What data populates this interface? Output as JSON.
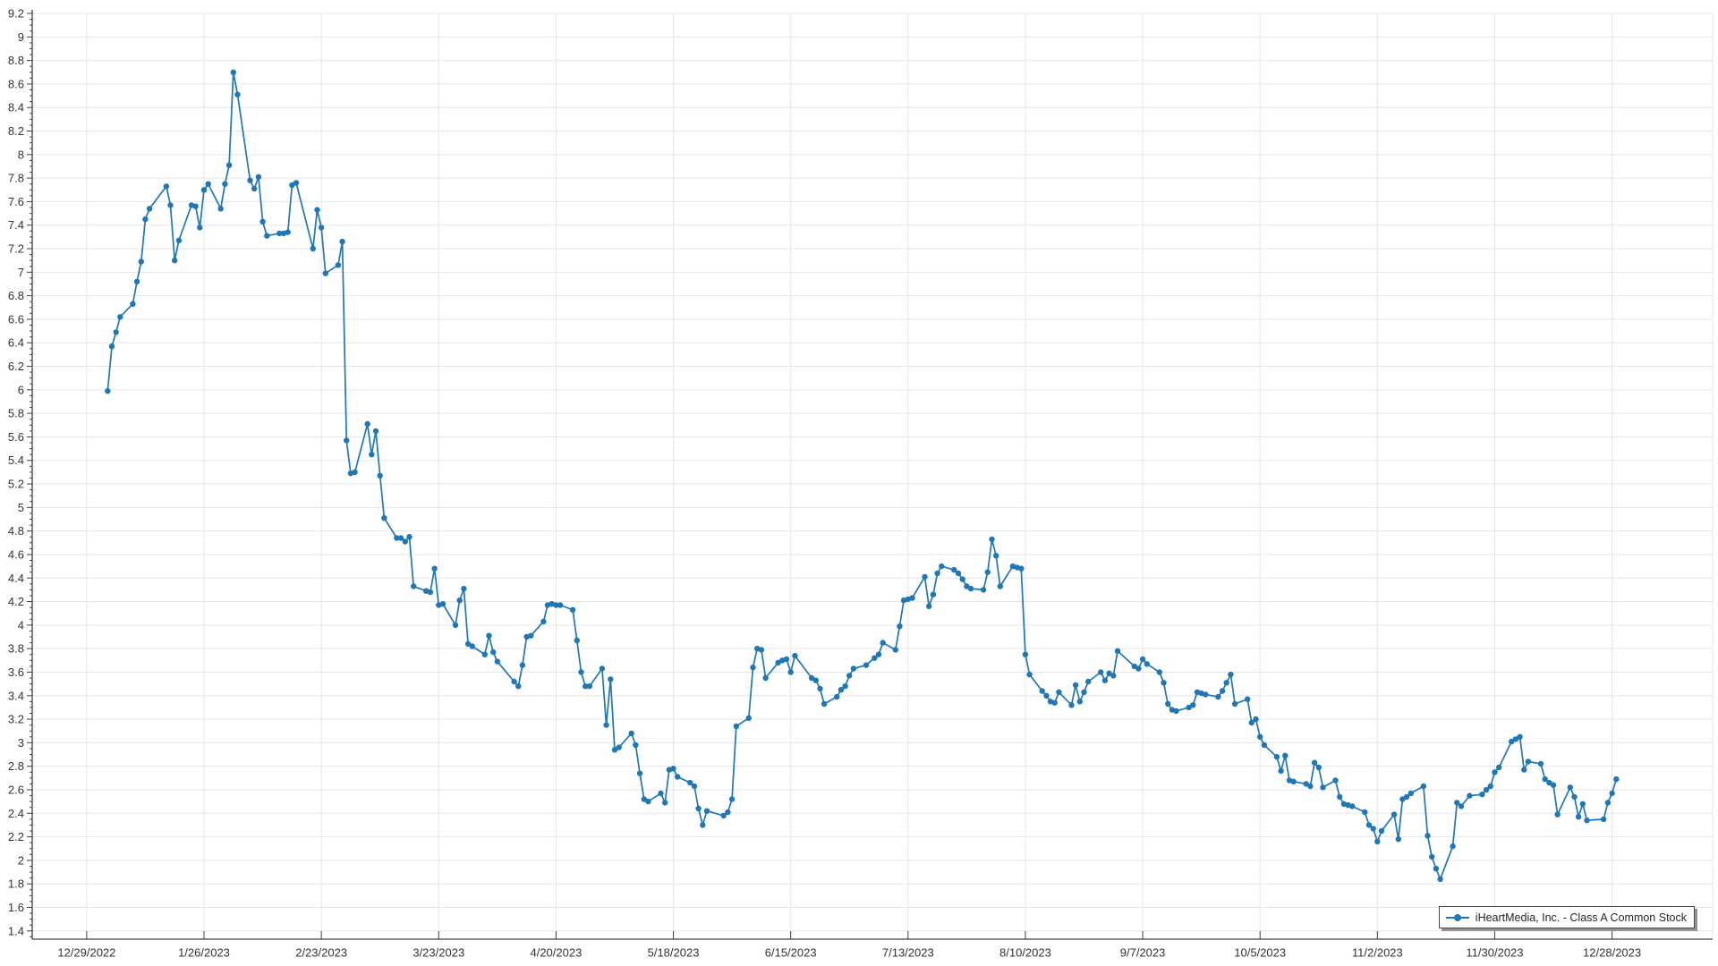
{
  "page": {
    "background": "#ffffff"
  },
  "chart_data": {
    "type": "line",
    "title": "",
    "legend": "iHeartMedia, Inc. - Class A Common Stock",
    "legend_position": "bottom-right",
    "series_color": "#1f77b4",
    "marker": "circle",
    "grid": true,
    "x_axis": {
      "tick_labels": [
        "12/29/2022",
        "1/26/2023",
        "2/23/2023",
        "3/23/2023",
        "4/20/2023",
        "5/18/2023",
        "6/15/2023",
        "7/13/2023",
        "8/10/2023",
        "9/7/2023",
        "10/5/2023",
        "11/2/2023",
        "11/30/2023",
        "12/28/2023"
      ]
    },
    "y_axis": {
      "tick_labels": [
        "1.4",
        "1.6",
        "1.8",
        "2",
        "2.2",
        "2.4",
        "2.6",
        "2.8",
        "3",
        "3.2",
        "3.4",
        "3.6",
        "3.8",
        "4",
        "4.2",
        "4.4",
        "4.6",
        "4.8",
        "5",
        "5.2",
        "5.4",
        "5.6",
        "5.8",
        "6",
        "6.2",
        "6.4",
        "6.6",
        "6.8",
        "7",
        "7.2",
        "7.4",
        "7.6",
        "7.8",
        "8",
        "8.2",
        "8.4",
        "8.6",
        "8.8",
        "9",
        "9.2"
      ]
    },
    "points": [
      [
        "1/3/2023",
        5.99
      ],
      [
        "1/4/2023",
        6.37
      ],
      [
        "1/5/2023",
        6.49
      ],
      [
        "1/6/2023",
        6.62
      ],
      [
        "1/9/2023",
        6.73
      ],
      [
        "1/10/2023",
        6.92
      ],
      [
        "1/11/2023",
        7.09
      ],
      [
        "1/12/2023",
        7.45
      ],
      [
        "1/13/2023",
        7.54
      ],
      [
        "1/17/2023",
        7.73
      ],
      [
        "1/18/2023",
        7.57
      ],
      [
        "1/19/2023",
        7.1
      ],
      [
        "1/20/2023",
        7.27
      ],
      [
        "1/23/2023",
        7.57
      ],
      [
        "1/24/2023",
        7.56
      ],
      [
        "1/25/2023",
        7.38
      ],
      [
        "1/26/2023",
        7.7
      ],
      [
        "1/27/2023",
        7.75
      ],
      [
        "1/30/2023",
        7.54
      ],
      [
        "1/31/2023",
        7.75
      ],
      [
        "2/1/2023",
        7.91
      ],
      [
        "2/2/2023",
        8.7
      ],
      [
        "2/3/2023",
        8.51
      ],
      [
        "2/6/2023",
        7.78
      ],
      [
        "2/7/2023",
        7.71
      ],
      [
        "2/8/2023",
        7.81
      ],
      [
        "2/9/2023",
        7.43
      ],
      [
        "2/10/2023",
        7.31
      ],
      [
        "2/13/2023",
        7.33
      ],
      [
        "2/14/2023",
        7.33
      ],
      [
        "2/15/2023",
        7.34
      ],
      [
        "2/16/2023",
        7.74
      ],
      [
        "2/17/2023",
        7.76
      ],
      [
        "2/21/2023",
        7.2
      ],
      [
        "2/22/2023",
        7.53
      ],
      [
        "2/23/2023",
        7.38
      ],
      [
        "2/24/2023",
        6.99
      ],
      [
        "2/27/2023",
        7.06
      ],
      [
        "2/28/2023",
        7.26
      ],
      [
        "3/1/2023",
        5.57
      ],
      [
        "3/2/2023",
        5.29
      ],
      [
        "3/3/2023",
        5.3
      ],
      [
        "3/6/2023",
        5.71
      ],
      [
        "3/7/2023",
        5.45
      ],
      [
        "3/8/2023",
        5.65
      ],
      [
        "3/9/2023",
        5.27
      ],
      [
        "3/10/2023",
        4.91
      ],
      [
        "3/13/2023",
        4.74
      ],
      [
        "3/14/2023",
        4.74
      ],
      [
        "3/15/2023",
        4.71
      ],
      [
        "3/16/2023",
        4.75
      ],
      [
        "3/17/2023",
        4.33
      ],
      [
        "3/20/2023",
        4.29
      ],
      [
        "3/21/2023",
        4.28
      ],
      [
        "3/22/2023",
        4.48
      ],
      [
        "3/23/2023",
        4.17
      ],
      [
        "3/24/2023",
        4.18
      ],
      [
        "3/27/2023",
        4.0
      ],
      [
        "3/28/2023",
        4.21
      ],
      [
        "3/29/2023",
        4.31
      ],
      [
        "3/30/2023",
        3.84
      ],
      [
        "3/31/2023",
        3.82
      ],
      [
        "4/3/2023",
        3.75
      ],
      [
        "4/4/2023",
        3.91
      ],
      [
        "4/5/2023",
        3.77
      ],
      [
        "4/6/2023",
        3.69
      ],
      [
        "4/10/2023",
        3.52
      ],
      [
        "4/11/2023",
        3.48
      ],
      [
        "4/12/2023",
        3.66
      ],
      [
        "4/13/2023",
        3.9
      ],
      [
        "4/14/2023",
        3.91
      ],
      [
        "4/17/2023",
        4.03
      ],
      [
        "4/18/2023",
        4.17
      ],
      [
        "4/19/2023",
        4.18
      ],
      [
        "4/20/2023",
        4.17
      ],
      [
        "4/21/2023",
        4.17
      ],
      [
        "4/24/2023",
        4.13
      ],
      [
        "4/25/2023",
        3.87
      ],
      [
        "4/26/2023",
        3.6
      ],
      [
        "4/27/2023",
        3.48
      ],
      [
        "4/28/2023",
        3.48
      ],
      [
        "5/1/2023",
        3.63
      ],
      [
        "5/2/2023",
        3.15
      ],
      [
        "5/3/2023",
        3.54
      ],
      [
        "5/4/2023",
        2.94
      ],
      [
        "5/5/2023",
        2.96
      ],
      [
        "5/8/2023",
        3.08
      ],
      [
        "5/9/2023",
        2.98
      ],
      [
        "5/10/2023",
        2.74
      ],
      [
        "5/11/2023",
        2.52
      ],
      [
        "5/12/2023",
        2.5
      ],
      [
        "5/15/2023",
        2.57
      ],
      [
        "5/16/2023",
        2.49
      ],
      [
        "5/17/2023",
        2.77
      ],
      [
        "5/18/2023",
        2.78
      ],
      [
        "5/19/2023",
        2.71
      ],
      [
        "5/22/2023",
        2.66
      ],
      [
        "5/23/2023",
        2.63
      ],
      [
        "5/24/2023",
        2.44
      ],
      [
        "5/25/2023",
        2.3
      ],
      [
        "5/26/2023",
        2.42
      ],
      [
        "5/30/2023",
        2.38
      ],
      [
        "5/31/2023",
        2.41
      ],
      [
        "6/1/2023",
        2.52
      ],
      [
        "6/2/2023",
        3.14
      ],
      [
        "6/5/2023",
        3.21
      ],
      [
        "6/6/2023",
        3.64
      ],
      [
        "6/7/2023",
        3.8
      ],
      [
        "6/8/2023",
        3.79
      ],
      [
        "6/9/2023",
        3.55
      ],
      [
        "6/12/2023",
        3.68
      ],
      [
        "6/13/2023",
        3.7
      ],
      [
        "6/14/2023",
        3.71
      ],
      [
        "6/15/2023",
        3.6
      ],
      [
        "6/16/2023",
        3.74
      ],
      [
        "6/20/2023",
        3.55
      ],
      [
        "6/21/2023",
        3.53
      ],
      [
        "6/22/2023",
        3.46
      ],
      [
        "6/23/2023",
        3.33
      ],
      [
        "6/26/2023",
        3.39
      ],
      [
        "6/27/2023",
        3.45
      ],
      [
        "6/28/2023",
        3.48
      ],
      [
        "6/29/2023",
        3.57
      ],
      [
        "6/30/2023",
        3.63
      ],
      [
        "7/3/2023",
        3.66
      ],
      [
        "7/5/2023",
        3.72
      ],
      [
        "7/6/2023",
        3.75
      ],
      [
        "7/7/2023",
        3.85
      ],
      [
        "7/10/2023",
        3.79
      ],
      [
        "7/11/2023",
        3.99
      ],
      [
        "7/12/2023",
        4.21
      ],
      [
        "7/13/2023",
        4.22
      ],
      [
        "7/14/2023",
        4.23
      ],
      [
        "7/17/2023",
        4.41
      ],
      [
        "7/18/2023",
        4.16
      ],
      [
        "7/19/2023",
        4.26
      ],
      [
        "7/20/2023",
        4.44
      ],
      [
        "7/21/2023",
        4.5
      ],
      [
        "7/24/2023",
        4.47
      ],
      [
        "7/25/2023",
        4.44
      ],
      [
        "7/26/2023",
        4.39
      ],
      [
        "7/27/2023",
        4.33
      ],
      [
        "7/28/2023",
        4.31
      ],
      [
        "7/31/2023",
        4.3
      ],
      [
        "8/1/2023",
        4.45
      ],
      [
        "8/2/2023",
        4.73
      ],
      [
        "8/3/2023",
        4.59
      ],
      [
        "8/4/2023",
        4.33
      ],
      [
        "8/7/2023",
        4.5
      ],
      [
        "8/8/2023",
        4.49
      ],
      [
        "8/9/2023",
        4.48
      ],
      [
        "8/10/2023",
        3.75
      ],
      [
        "8/11/2023",
        3.58
      ],
      [
        "8/14/2023",
        3.44
      ],
      [
        "8/15/2023",
        3.4
      ],
      [
        "8/16/2023",
        3.35
      ],
      [
        "8/17/2023",
        3.34
      ],
      [
        "8/18/2023",
        3.43
      ],
      [
        "8/21/2023",
        3.32
      ],
      [
        "8/22/2023",
        3.49
      ],
      [
        "8/23/2023",
        3.35
      ],
      [
        "8/24/2023",
        3.43
      ],
      [
        "8/25/2023",
        3.52
      ],
      [
        "8/28/2023",
        3.6
      ],
      [
        "8/29/2023",
        3.53
      ],
      [
        "8/30/2023",
        3.59
      ],
      [
        "8/31/2023",
        3.57
      ],
      [
        "9/1/2023",
        3.78
      ],
      [
        "9/5/2023",
        3.65
      ],
      [
        "9/6/2023",
        3.63
      ],
      [
        "9/7/2023",
        3.71
      ],
      [
        "9/8/2023",
        3.67
      ],
      [
        "9/11/2023",
        3.6
      ],
      [
        "9/12/2023",
        3.51
      ],
      [
        "9/13/2023",
        3.33
      ],
      [
        "9/14/2023",
        3.28
      ],
      [
        "9/15/2023",
        3.27
      ],
      [
        "9/18/2023",
        3.3
      ],
      [
        "9/19/2023",
        3.32
      ],
      [
        "9/20/2023",
        3.43
      ],
      [
        "9/21/2023",
        3.42
      ],
      [
        "9/22/2023",
        3.41
      ],
      [
        "9/25/2023",
        3.39
      ],
      [
        "9/26/2023",
        3.44
      ],
      [
        "9/27/2023",
        3.51
      ],
      [
        "9/28/2023",
        3.58
      ],
      [
        "9/29/2023",
        3.33
      ],
      [
        "10/2/2023",
        3.37
      ],
      [
        "10/3/2023",
        3.17
      ],
      [
        "10/4/2023",
        3.2
      ],
      [
        "10/5/2023",
        3.05
      ],
      [
        "10/6/2023",
        2.98
      ],
      [
        "10/9/2023",
        2.88
      ],
      [
        "10/10/2023",
        2.76
      ],
      [
        "10/11/2023",
        2.89
      ],
      [
        "10/12/2023",
        2.68
      ],
      [
        "10/13/2023",
        2.67
      ],
      [
        "10/16/2023",
        2.65
      ],
      [
        "10/17/2023",
        2.63
      ],
      [
        "10/18/2023",
        2.83
      ],
      [
        "10/19/2023",
        2.79
      ],
      [
        "10/20/2023",
        2.62
      ],
      [
        "10/23/2023",
        2.68
      ],
      [
        "10/24/2023",
        2.54
      ],
      [
        "10/25/2023",
        2.48
      ],
      [
        "10/26/2023",
        2.47
      ],
      [
        "10/27/2023",
        2.46
      ],
      [
        "10/30/2023",
        2.41
      ],
      [
        "10/31/2023",
        2.3
      ],
      [
        "11/1/2023",
        2.27
      ],
      [
        "11/2/2023",
        2.16
      ],
      [
        "11/3/2023",
        2.25
      ],
      [
        "11/6/2023",
        2.39
      ],
      [
        "11/7/2023",
        2.18
      ],
      [
        "11/8/2023",
        2.52
      ],
      [
        "11/9/2023",
        2.54
      ],
      [
        "11/10/2023",
        2.57
      ],
      [
        "11/13/2023",
        2.63
      ],
      [
        "11/14/2023",
        2.21
      ],
      [
        "11/15/2023",
        2.03
      ],
      [
        "11/16/2023",
        1.93
      ],
      [
        "11/17/2023",
        1.84
      ],
      [
        "11/20/2023",
        2.12
      ],
      [
        "11/21/2023",
        2.49
      ],
      [
        "11/22/2023",
        2.46
      ],
      [
        "11/24/2023",
        2.55
      ],
      [
        "11/27/2023",
        2.56
      ],
      [
        "11/28/2023",
        2.6
      ],
      [
        "11/29/2023",
        2.63
      ],
      [
        "11/30/2023",
        2.75
      ],
      [
        "12/1/2023",
        2.79
      ],
      [
        "12/4/2023",
        3.01
      ],
      [
        "12/5/2023",
        3.03
      ],
      [
        "12/6/2023",
        3.05
      ],
      [
        "12/7/2023",
        2.77
      ],
      [
        "12/8/2023",
        2.84
      ],
      [
        "12/11/2023",
        2.82
      ],
      [
        "12/12/2023",
        2.69
      ],
      [
        "12/13/2023",
        2.66
      ],
      [
        "12/14/2023",
        2.64
      ],
      [
        "12/15/2023",
        2.39
      ],
      [
        "12/18/2023",
        2.62
      ],
      [
        "12/19/2023",
        2.54
      ],
      [
        "12/20/2023",
        2.37
      ],
      [
        "12/21/2023",
        2.48
      ],
      [
        "12/22/2023",
        2.34
      ],
      [
        "12/26/2023",
        2.35
      ],
      [
        "12/27/2023",
        2.49
      ],
      [
        "12/28/2023",
        2.57
      ],
      [
        "12/29/2023",
        2.69
      ]
    ]
  }
}
